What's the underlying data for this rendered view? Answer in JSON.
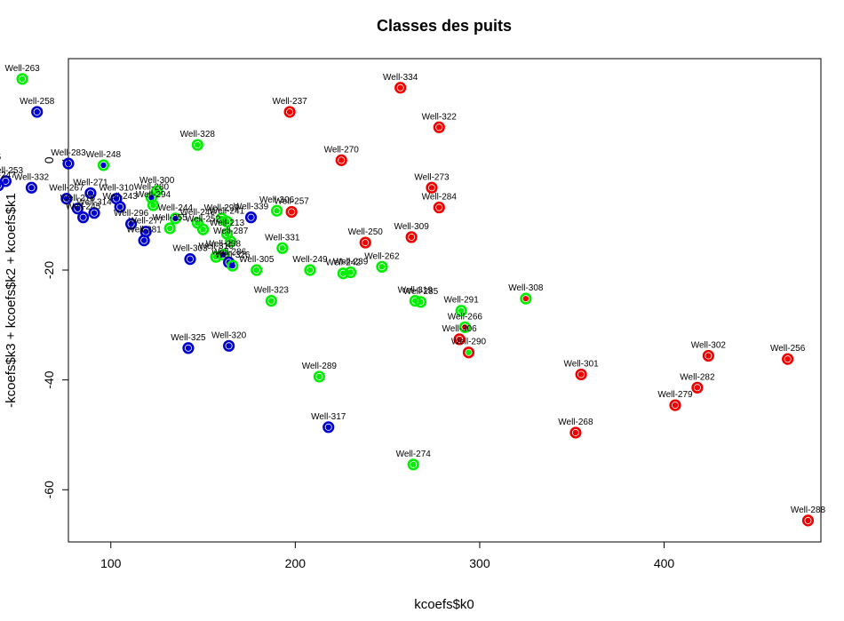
{
  "chart_data": {
    "type": "scatter",
    "title": "Classes des puits",
    "xlabel": "kcoefs$k0",
    "ylabel": "-kcoefs$k3 + kcoefs$k2 + kcoefs$k1",
    "xlim": [
      77,
      485
    ],
    "ylim": [
      -69.5,
      18.5
    ],
    "x_ticks": [
      100,
      200,
      300,
      400
    ],
    "y_ticks": [
      -60,
      -40,
      -20,
      0
    ],
    "grid": false,
    "legend": "none",
    "colors": {
      "blue": "#0000cc",
      "green": "#00ee00",
      "red": "#ee0000"
    },
    "points": [
      {
        "label": "Well-263",
        "x": 52,
        "y": 14.8,
        "ring": "green",
        "dot": "green"
      },
      {
        "label": "Well-258",
        "x": 60,
        "y": 8.8,
        "ring": "blue",
        "dot": "blue"
      },
      {
        "label": "Well-251",
        "x": 30,
        "y": 3.0,
        "ring": "blue",
        "dot": "blue"
      },
      {
        "label": "Well-318",
        "x": 30,
        "y": -0.6,
        "ring": "blue",
        "dot": "blue"
      },
      {
        "label": "Well-265",
        "x": 31,
        "y": -1.4,
        "ring": "blue",
        "dot": "blue"
      },
      {
        "label": "Well-253",
        "x": 43,
        "y": -3.8,
        "ring": "blue",
        "dot": "blue"
      },
      {
        "label": "Well-247",
        "x": 39,
        "y": -4.6,
        "ring": "blue",
        "dot": "blue"
      },
      {
        "label": "Well-332",
        "x": 57,
        "y": -5.0,
        "ring": "blue",
        "dot": "blue"
      },
      {
        "label": "Well-283",
        "x": 77,
        "y": -0.6,
        "ring": "blue",
        "dot": "blue"
      },
      {
        "label": "Well-248",
        "x": 96,
        "y": -0.9,
        "ring": "green",
        "dot": "blue"
      },
      {
        "label": "Well-271",
        "x": 89,
        "y": -6.0,
        "ring": "blue",
        "dot": "blue"
      },
      {
        "label": "Well-267",
        "x": 76,
        "y": -7.0,
        "ring": "blue",
        "dot": "blue"
      },
      {
        "label": "Well-310",
        "x": 103,
        "y": -7.0,
        "ring": "blue",
        "dot": "blue"
      },
      {
        "label": "Well-243",
        "x": 105,
        "y": -8.5,
        "ring": "blue",
        "dot": "blue"
      },
      {
        "label": "Well-276",
        "x": 82,
        "y": -8.8,
        "ring": "blue",
        "dot": "blue"
      },
      {
        "label": "Well-314",
        "x": 91,
        "y": -9.6,
        "ring": "blue",
        "dot": "blue"
      },
      {
        "label": "Well-245",
        "x": 85,
        "y": -10.4,
        "ring": "blue",
        "dot": "blue"
      },
      {
        "label": "Well-300",
        "x": 125,
        "y": -5.6,
        "ring": "green",
        "dot": "green"
      },
      {
        "label": "Well-280",
        "x": 122,
        "y": -6.8,
        "ring": "green",
        "dot": "blue"
      },
      {
        "label": "Well-294",
        "x": 123,
        "y": -8.2,
        "ring": "green",
        "dot": "green"
      },
      {
        "label": "Well-296",
        "x": 111,
        "y": -11.6,
        "ring": "blue",
        "dot": "blue"
      },
      {
        "label": "Well-244",
        "x": 135,
        "y": -10.6,
        "ring": "green",
        "dot": "blue"
      },
      {
        "label": "Well-277",
        "x": 119,
        "y": -13.0,
        "ring": "blue",
        "dot": "blue"
      },
      {
        "label": "Well-255",
        "x": 132,
        "y": -12.4,
        "ring": "green",
        "dot": "green"
      },
      {
        "label": "Well-281",
        "x": 118,
        "y": -14.6,
        "ring": "blue",
        "dot": "blue"
      },
      {
        "label": "Well-246",
        "x": 147,
        "y": -11.4,
        "ring": "green",
        "dot": "green"
      },
      {
        "label": "Well-252",
        "x": 150,
        "y": -12.6,
        "ring": "green",
        "dot": "green"
      },
      {
        "label": "Well-299",
        "x": 160,
        "y": -10.6,
        "ring": "green",
        "dot": "green"
      },
      {
        "label": "Well-241",
        "x": 163,
        "y": -11.2,
        "ring": "green",
        "dot": "green"
      },
      {
        "label": "Well-213",
        "x": 163,
        "y": -13.4,
        "ring": "green",
        "dot": "green"
      },
      {
        "label": "Well-287",
        "x": 165,
        "y": -14.8,
        "ring": "green",
        "dot": "green"
      },
      {
        "label": "Well-339",
        "x": 176,
        "y": -10.4,
        "ring": "blue",
        "dot": "blue"
      },
      {
        "label": "Well-306",
        "x": 190,
        "y": -9.2,
        "ring": "green",
        "dot": "green"
      },
      {
        "label": "Well-257",
        "x": 198,
        "y": -9.4,
        "ring": "red",
        "dot": "red"
      },
      {
        "label": "Well-331",
        "x": 193,
        "y": -16.0,
        "ring": "green",
        "dot": "green"
      },
      {
        "label": "Well-303",
        "x": 143,
        "y": -18.0,
        "ring": "blue",
        "dot": "blue"
      },
      {
        "label": "Well-316",
        "x": 157,
        "y": -17.6,
        "ring": "green",
        "dot": "green"
      },
      {
        "label": "Well-238",
        "x": 161,
        "y": -17.2,
        "ring": "green",
        "dot": "blue"
      },
      {
        "label": "Well-286",
        "x": 164,
        "y": -18.6,
        "ring": "blue",
        "dot": "blue"
      },
      {
        "label": "Well-326",
        "x": 166,
        "y": -19.2,
        "ring": "green",
        "dot": "blue"
      },
      {
        "label": "Well-305",
        "x": 179,
        "y": -20.0,
        "ring": "green",
        "dot": "green"
      },
      {
        "label": "Well-249",
        "x": 208,
        "y": -20.0,
        "ring": "green",
        "dot": "green"
      },
      {
        "label": "Well-239",
        "x": 230,
        "y": -20.4,
        "ring": "green",
        "dot": "green"
      },
      {
        "label": "Well-242",
        "x": 226,
        "y": -20.6,
        "ring": "green",
        "dot": "green"
      },
      {
        "label": "Well-262",
        "x": 247,
        "y": -19.4,
        "ring": "green",
        "dot": "green"
      },
      {
        "label": "Well-250",
        "x": 238,
        "y": -15.0,
        "ring": "red",
        "dot": "red"
      },
      {
        "label": "Well-309",
        "x": 263,
        "y": -14.0,
        "ring": "red",
        "dot": "red"
      },
      {
        "label": "Well-237",
        "x": 197,
        "y": 8.8,
        "ring": "red",
        "dot": "red"
      },
      {
        "label": "Well-334",
        "x": 257,
        "y": 13.2,
        "ring": "red",
        "dot": "red"
      },
      {
        "label": "Well-322",
        "x": 278,
        "y": 6.0,
        "ring": "red",
        "dot": "red"
      },
      {
        "label": "Well-270",
        "x": 225,
        "y": 0.0,
        "ring": "red",
        "dot": "red"
      },
      {
        "label": "Well-273",
        "x": 274,
        "y": -5.0,
        "ring": "red",
        "dot": "red"
      },
      {
        "label": "Well-284",
        "x": 278,
        "y": -8.6,
        "ring": "red",
        "dot": "red"
      },
      {
        "label": "Well-328",
        "x": 147,
        "y": 2.8,
        "ring": "green",
        "dot": "green"
      },
      {
        "label": "Well-323",
        "x": 187,
        "y": -25.6,
        "ring": "green",
        "dot": "green"
      },
      {
        "label": "Well-319",
        "x": 265,
        "y": -25.6,
        "ring": "green",
        "dot": "green"
      },
      {
        "label": "Well-285",
        "x": 268,
        "y": -25.8,
        "ring": "green",
        "dot": "green"
      },
      {
        "label": "Well-291",
        "x": 290,
        "y": -27.4,
        "ring": "green",
        "dot": "green"
      },
      {
        "label": "Well-308",
        "x": 325,
        "y": -25.2,
        "ring": "green",
        "dot": "red"
      },
      {
        "label": "Well-266",
        "x": 292,
        "y": -30.4,
        "ring": "green",
        "dot": "red"
      },
      {
        "label": "Well-306",
        "x": 289,
        "y": -32.6,
        "ring": "red",
        "dot": "red"
      },
      {
        "label": "Well-290",
        "x": 294,
        "y": -35.0,
        "ring": "red",
        "dot": "green"
      },
      {
        "label": "Well-325",
        "x": 142,
        "y": -34.2,
        "ring": "blue",
        "dot": "blue"
      },
      {
        "label": "Well-320",
        "x": 164,
        "y": -33.8,
        "ring": "blue",
        "dot": "blue"
      },
      {
        "label": "Well-289",
        "x": 213,
        "y": -39.4,
        "ring": "green",
        "dot": "green"
      },
      {
        "label": "Well-317",
        "x": 218,
        "y": -48.6,
        "ring": "blue",
        "dot": "blue"
      },
      {
        "label": "Well-274",
        "x": 264,
        "y": -55.4,
        "ring": "green",
        "dot": "green"
      },
      {
        "label": "Well-301",
        "x": 355,
        "y": -39.0,
        "ring": "red",
        "dot": "red"
      },
      {
        "label": "Well-268",
        "x": 352,
        "y": -49.6,
        "ring": "red",
        "dot": "red"
      },
      {
        "label": "Well-302",
        "x": 424,
        "y": -35.6,
        "ring": "red",
        "dot": "red"
      },
      {
        "label": "Well-282",
        "x": 418,
        "y": -41.4,
        "ring": "red",
        "dot": "red"
      },
      {
        "label": "Well-279",
        "x": 406,
        "y": -44.6,
        "ring": "red",
        "dot": "red"
      },
      {
        "label": "Well-256",
        "x": 467,
        "y": -36.2,
        "ring": "red",
        "dot": "red"
      },
      {
        "label": "Well-288",
        "x": 478,
        "y": -65.6,
        "ring": "red",
        "dot": "red"
      }
    ]
  }
}
